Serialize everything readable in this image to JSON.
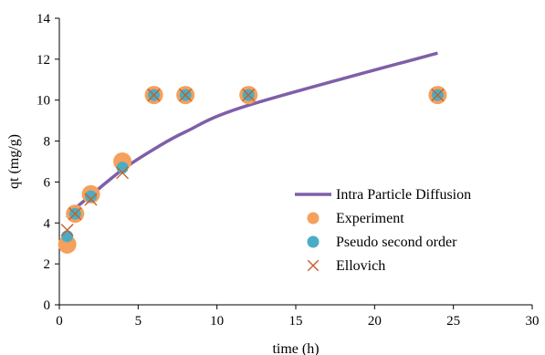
{
  "chart_data": {
    "type": "scatter",
    "title": "",
    "xlabel": "time (h)",
    "ylabel": "qt (mg/g)",
    "xlim": [
      0,
      30
    ],
    "ylim": [
      0,
      14
    ],
    "xticks": [
      0,
      5,
      10,
      15,
      20,
      25,
      30
    ],
    "yticks": [
      0,
      2,
      4,
      6,
      8,
      10,
      12,
      14
    ],
    "grid": false,
    "legend_position": "bottom-right",
    "series": [
      {
        "name": "Intra Particle Diffusion",
        "type": "line",
        "color": "#7f5fa8",
        "x": [
          0.5,
          1,
          2,
          4,
          6,
          8,
          12,
          24
        ],
        "y": [
          4.25,
          4.7,
          5.35,
          6.6,
          7.6,
          8.45,
          9.75,
          12.3
        ]
      },
      {
        "name": "Experiment",
        "type": "scatter",
        "marker": "circle",
        "color": "#f5a05c",
        "x": [
          0.5,
          1,
          2,
          4,
          6,
          8,
          12,
          24
        ],
        "y": [
          2.95,
          4.45,
          5.4,
          7.0,
          10.25,
          10.25,
          10.25,
          10.25
        ]
      },
      {
        "name": "Pseudo second order",
        "type": "scatter",
        "marker": "circle",
        "color": "#4bacc6",
        "x": [
          0.5,
          1,
          2,
          4,
          6,
          8,
          12,
          24
        ],
        "y": [
          3.35,
          4.45,
          5.3,
          6.7,
          10.25,
          10.25,
          10.25,
          10.25
        ]
      },
      {
        "name": "Ellovich",
        "type": "scatter",
        "marker": "x",
        "color": "#c0622a",
        "x": [
          0.5,
          1,
          2,
          4,
          6,
          8,
          12,
          24
        ],
        "y": [
          3.65,
          4.45,
          5.15,
          6.45,
          10.25,
          10.25,
          10.25,
          10.25
        ]
      }
    ]
  }
}
